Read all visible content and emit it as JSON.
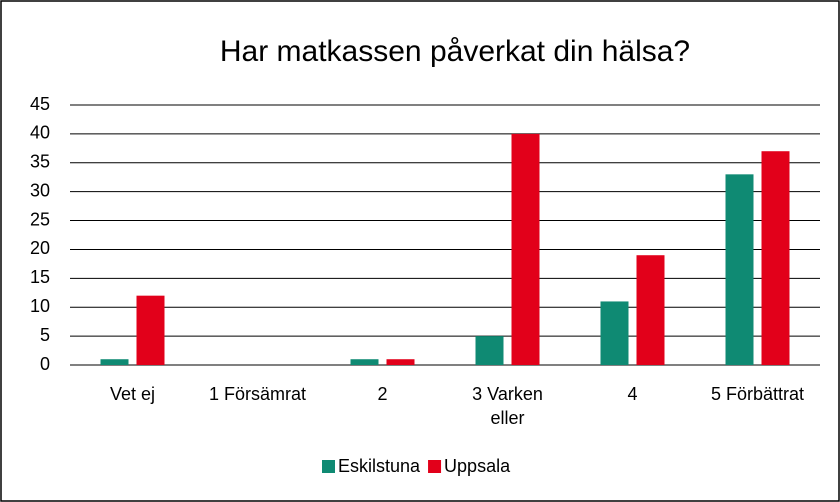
{
  "chart_data": {
    "type": "bar",
    "title": "Har matkassen påverkat din hälsa?",
    "categories": [
      "Vet ej",
      "1 Försämrat",
      "2",
      "3 Varken eller",
      "4",
      "5 Förbättrat"
    ],
    "series": [
      {
        "name": "Eskilstuna",
        "color": "#0f8a73",
        "values": [
          1,
          0,
          1,
          5,
          11,
          33
        ]
      },
      {
        "name": "Uppsala",
        "color": "#e2001a",
        "values": [
          12,
          0,
          1,
          40,
          19,
          37
        ]
      }
    ],
    "ylim": [
      0,
      45
    ],
    "yticks": [
      0,
      5,
      10,
      15,
      20,
      25,
      30,
      35,
      40,
      45
    ],
    "grid": true,
    "legend": "bottom"
  }
}
